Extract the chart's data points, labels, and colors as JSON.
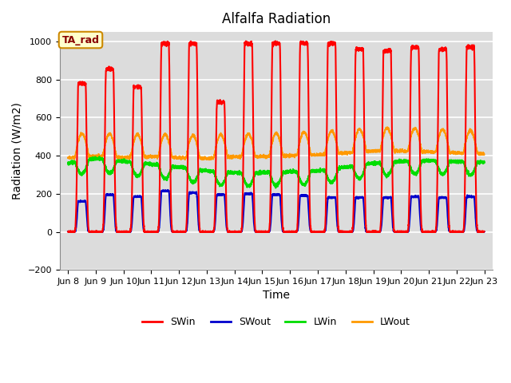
{
  "title": "Alfalfa Radiation",
  "ylabel": "Radiation (W/m2)",
  "xlabel": "Time",
  "ylim": [
    -200,
    1050
  ],
  "background_color": "#dcdcdc",
  "plot_bg_color": "#dcdcdc",
  "grid_color": "white",
  "SWin_color": "#ff0000",
  "SWout_color": "#0000cc",
  "LWin_color": "#00dd00",
  "LWout_color": "#ff9900",
  "annotation_text": "TA_rad",
  "annotation_bg": "#ffffcc",
  "annotation_border": "#cc8800",
  "annotation_text_color": "#880000",
  "tick_labels": [
    "Jun 8",
    "Jun 9",
    "Jun 10",
    "Jun 11",
    "Jun 12",
    "Jun 13",
    "Jun 14",
    "Jun 15",
    "Jun 16",
    "Jun 17",
    "Jun 18",
    "Jun 19",
    "Jun 20",
    "Jun 21",
    "Jun 22",
    "Jun 23"
  ],
  "n_days": 15,
  "pts_per_day": 288,
  "SWin_peaks": [
    780,
    855,
    760,
    990,
    990,
    680,
    990,
    990,
    990,
    990,
    960,
    950,
    970,
    960,
    970
  ],
  "SWout_peaks": [
    160,
    195,
    185,
    215,
    205,
    195,
    200,
    195,
    190,
    180,
    180,
    180,
    185,
    180,
    185
  ],
  "LWin_night": [
    360,
    385,
    370,
    355,
    340,
    320,
    310,
    310,
    315,
    320,
    340,
    360,
    370,
    375,
    370,
    365
  ],
  "LWout_night": [
    390,
    400,
    390,
    395,
    390,
    385,
    395,
    395,
    400,
    405,
    415,
    425,
    425,
    420,
    415,
    410
  ],
  "title_fontsize": 12,
  "label_fontsize": 10,
  "tick_fontsize": 8,
  "legend_fontsize": 9
}
